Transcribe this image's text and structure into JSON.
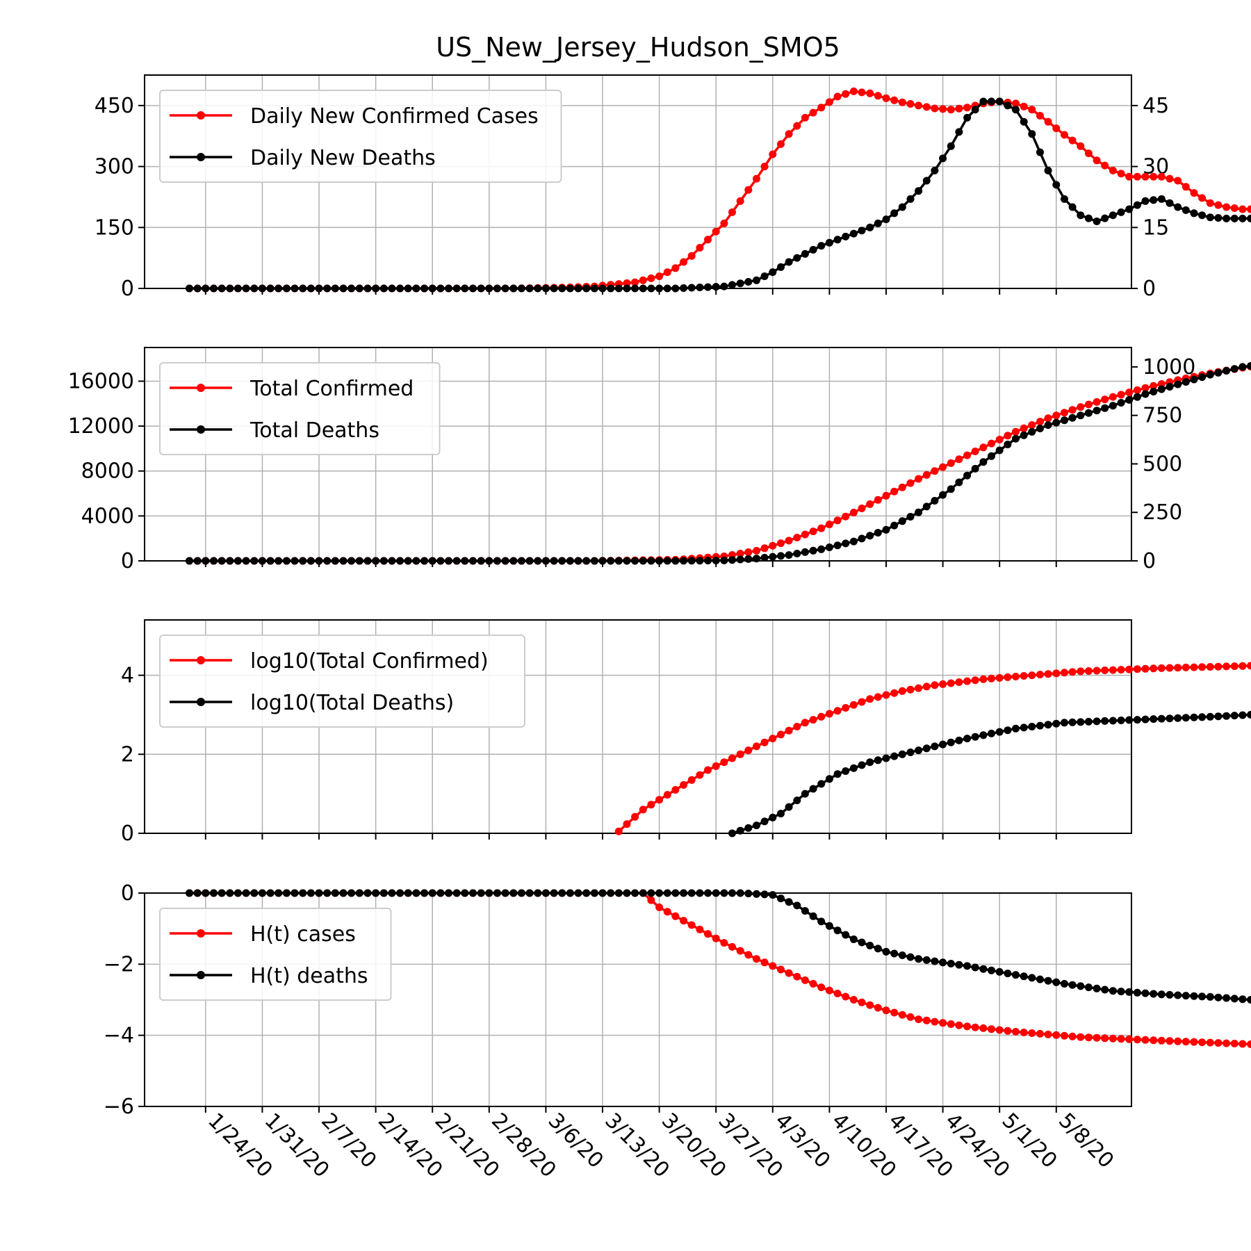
{
  "figure": {
    "title": "US_New_Jersey_Hudson_SMO5",
    "x_tick_labels": [
      "1/24/20",
      "1/31/20",
      "2/7/20",
      "2/14/20",
      "2/21/20",
      "2/28/20",
      "3/6/20",
      "3/13/20",
      "3/20/20",
      "3/27/20",
      "4/3/20",
      "4/10/20",
      "4/17/20",
      "4/24/20",
      "5/1/20",
      "5/8/20"
    ],
    "colors": {
      "cases": "#ff0000",
      "deaths": "#000000",
      "grid": "#b0b0b0"
    }
  },
  "chart_data": [
    {
      "type": "line",
      "panel": "daily",
      "x_range": [
        "1/22/20",
        "5/11/20"
      ],
      "left_axis": {
        "ylim": [
          0,
          525
        ],
        "ticks": [
          0,
          150,
          300,
          450
        ]
      },
      "right_axis": {
        "ylim": [
          0,
          52.5
        ],
        "ticks": [
          0,
          15,
          30,
          45
        ]
      },
      "legend": "upper-left",
      "grid": true,
      "series": [
        {
          "name": "Daily New Confirmed Cases",
          "axis": "left",
          "color": "#ff0000",
          "points": [
            [
              0,
              0
            ],
            [
              10,
              0
            ],
            [
              20,
              0
            ],
            [
              30,
              0
            ],
            [
              40,
              0
            ],
            [
              46,
              2
            ],
            [
              50,
              5
            ],
            [
              55,
              15
            ],
            [
              58,
              30
            ],
            [
              60,
              50
            ],
            [
              62,
              80
            ],
            [
              64,
              120
            ],
            [
              66,
              160
            ],
            [
              68,
              215
            ],
            [
              70,
              270
            ],
            [
              72,
              330
            ],
            [
              74,
              380
            ],
            [
              76,
              420
            ],
            [
              78,
              445
            ],
            [
              80,
              472
            ],
            [
              82,
              485
            ],
            [
              84,
              480
            ],
            [
              86,
              468
            ],
            [
              88,
              458
            ],
            [
              90,
              450
            ],
            [
              92,
              443
            ],
            [
              94,
              440
            ],
            [
              96,
              445
            ],
            [
              98,
              455
            ],
            [
              100,
              460
            ],
            [
              102,
              455
            ],
            [
              104,
              440
            ],
            [
              106,
              410
            ],
            [
              108,
              378
            ],
            [
              110,
              350
            ],
            [
              112,
              315
            ],
            [
              114,
              290
            ],
            [
              116,
              275
            ],
            [
              118,
              275
            ],
            [
              120,
              275
            ],
            [
              122,
              265
            ],
            [
              124,
              235
            ],
            [
              126,
              210
            ],
            [
              128,
              200
            ],
            [
              130,
              195
            ],
            [
              131,
              195
            ]
          ]
        },
        {
          "name": "Daily New Deaths",
          "axis": "right",
          "color": "#000000",
          "points": [
            [
              0,
              0
            ],
            [
              20,
              0
            ],
            [
              40,
              0
            ],
            [
              60,
              0
            ],
            [
              66,
              0.5
            ],
            [
              70,
              2
            ],
            [
              72,
              4
            ],
            [
              74,
              6.5
            ],
            [
              76,
              8.5
            ],
            [
              78,
              10.5
            ],
            [
              80,
              12
            ],
            [
              82,
              13.5
            ],
            [
              84,
              15
            ],
            [
              86,
              17
            ],
            [
              88,
              20
            ],
            [
              90,
              24
            ],
            [
              92,
              29
            ],
            [
              94,
              35
            ],
            [
              96,
              42
            ],
            [
              98,
              46
            ],
            [
              100,
              46
            ],
            [
              102,
              44
            ],
            [
              104,
              38
            ],
            [
              106,
              29
            ],
            [
              108,
              22
            ],
            [
              110,
              18
            ],
            [
              112,
              16.5
            ],
            [
              114,
              18
            ],
            [
              116,
              19.5
            ],
            [
              118,
              21.5
            ],
            [
              120,
              22
            ],
            [
              122,
              20
            ],
            [
              124,
              18.5
            ],
            [
              126,
              17.5
            ],
            [
              128,
              17.2
            ],
            [
              130,
              17.2
            ],
            [
              131,
              17.2
            ]
          ]
        }
      ]
    },
    {
      "type": "line",
      "panel": "total",
      "x_range": [
        "1/22/20",
        "5/11/20"
      ],
      "left_axis": {
        "ylim": [
          0,
          19000
        ],
        "ticks": [
          0,
          4000,
          8000,
          12000,
          16000
        ]
      },
      "right_axis": {
        "ylim": [
          0,
          1100
        ],
        "ticks": [
          0,
          250,
          500,
          750,
          1000
        ]
      },
      "legend": "upper-left",
      "grid": true,
      "series": [
        {
          "name": "Total Confirmed",
          "axis": "left",
          "color": "#ff0000",
          "points": [
            [
              0,
              0
            ],
            [
              50,
              0
            ],
            [
              60,
              100
            ],
            [
              66,
              400
            ],
            [
              70,
              900
            ],
            [
              74,
              1800
            ],
            [
              78,
              2900
            ],
            [
              82,
              4300
            ],
            [
              86,
              5800
            ],
            [
              90,
              7300
            ],
            [
              94,
              8700
            ],
            [
              98,
              10100
            ],
            [
              102,
              11500
            ],
            [
              106,
              12700
            ],
            [
              110,
              13700
            ],
            [
              114,
              14600
            ],
            [
              118,
              15400
            ],
            [
              122,
              16100
            ],
            [
              126,
              16700
            ],
            [
              130,
              17200
            ],
            [
              131,
              17300
            ]
          ]
        },
        {
          "name": "Total Deaths",
          "axis": "right",
          "color": "#000000",
          "points": [
            [
              0,
              0
            ],
            [
              60,
              0
            ],
            [
              66,
              2
            ],
            [
              70,
              12
            ],
            [
              74,
              30
            ],
            [
              78,
              60
            ],
            [
              82,
              100
            ],
            [
              86,
              160
            ],
            [
              90,
              250
            ],
            [
              94,
              370
            ],
            [
              98,
              510
            ],
            [
              102,
              630
            ],
            [
              106,
              700
            ],
            [
              110,
              750
            ],
            [
              114,
              800
            ],
            [
              118,
              860
            ],
            [
              122,
              910
            ],
            [
              126,
              960
            ],
            [
              130,
              1000
            ],
            [
              131,
              1005
            ]
          ]
        }
      ]
    },
    {
      "type": "line",
      "panel": "log",
      "x_range": [
        "1/22/20",
        "5/11/20"
      ],
      "left_axis": {
        "ylim": [
          0,
          5.4
        ],
        "ticks": [
          0,
          2,
          4
        ]
      },
      "legend": "upper-left",
      "grid": true,
      "series": [
        {
          "name": "log10(Total Confirmed)",
          "color": "#ff0000",
          "points": [
            [
              53,
              0.05
            ],
            [
              56,
              0.6
            ],
            [
              60,
              1.1
            ],
            [
              64,
              1.6
            ],
            [
              68,
              2.0
            ],
            [
              72,
              2.4
            ],
            [
              76,
              2.8
            ],
            [
              80,
              3.1
            ],
            [
              84,
              3.4
            ],
            [
              88,
              3.6
            ],
            [
              92,
              3.75
            ],
            [
              98,
              3.9
            ],
            [
              104,
              4.0
            ],
            [
              110,
              4.1
            ],
            [
              120,
              4.18
            ],
            [
              131,
              4.24
            ]
          ]
        },
        {
          "name": "log10(Total Deaths)",
          "color": "#000000",
          "points": [
            [
              67,
              0
            ],
            [
              70,
              0.2
            ],
            [
              73,
              0.5
            ],
            [
              76,
              1.0
            ],
            [
              80,
              1.5
            ],
            [
              84,
              1.8
            ],
            [
              90,
              2.1
            ],
            [
              96,
              2.4
            ],
            [
              102,
              2.65
            ],
            [
              108,
              2.8
            ],
            [
              114,
              2.85
            ],
            [
              120,
              2.9
            ],
            [
              126,
              2.95
            ],
            [
              131,
              3.0
            ]
          ]
        }
      ]
    },
    {
      "type": "line",
      "panel": "entropy",
      "x_range": [
        "1/22/20",
        "5/11/20"
      ],
      "left_axis": {
        "ylim": [
          -6,
          0
        ],
        "ticks": [
          -6,
          -4,
          -2,
          0
        ]
      },
      "legend": "upper-left",
      "grid": true,
      "series": [
        {
          "name": "H(t) cases",
          "color": "#ff0000",
          "points": [
            [
              0,
              0
            ],
            [
              56,
              0
            ],
            [
              58,
              -0.4
            ],
            [
              62,
              -0.9
            ],
            [
              66,
              -1.4
            ],
            [
              70,
              -1.85
            ],
            [
              74,
              -2.25
            ],
            [
              78,
              -2.65
            ],
            [
              82,
              -3.0
            ],
            [
              86,
              -3.3
            ],
            [
              90,
              -3.55
            ],
            [
              96,
              -3.75
            ],
            [
              102,
              -3.9
            ],
            [
              110,
              -4.05
            ],
            [
              120,
              -4.15
            ],
            [
              131,
              -4.25
            ]
          ]
        },
        {
          "name": "H(t) deaths",
          "color": "#000000",
          "points": [
            [
              0,
              0
            ],
            [
              68,
              0
            ],
            [
              72,
              -0.05
            ],
            [
              75,
              -0.35
            ],
            [
              78,
              -0.8
            ],
            [
              82,
              -1.3
            ],
            [
              86,
              -1.65
            ],
            [
              90,
              -1.85
            ],
            [
              96,
              -2.05
            ],
            [
              102,
              -2.3
            ],
            [
              108,
              -2.55
            ],
            [
              114,
              -2.75
            ],
            [
              120,
              -2.85
            ],
            [
              126,
              -2.92
            ],
            [
              131,
              -3.0
            ]
          ]
        }
      ]
    }
  ]
}
